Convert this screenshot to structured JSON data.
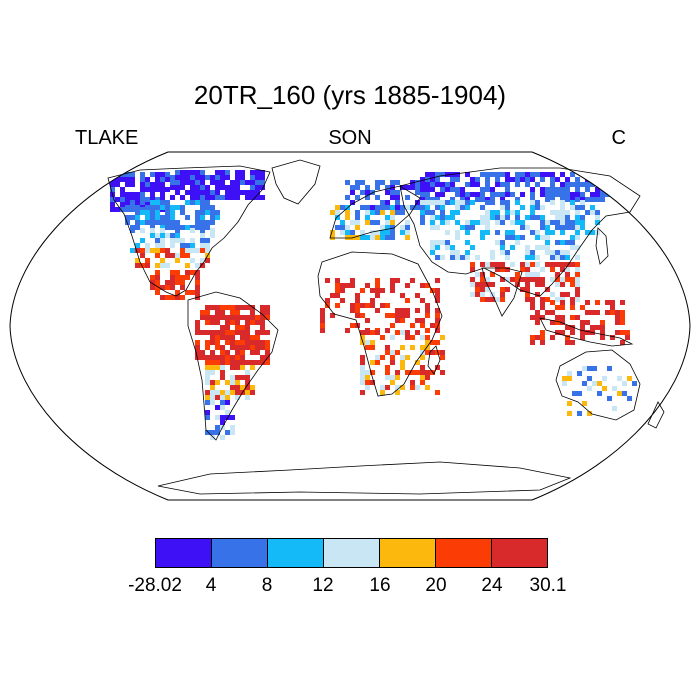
{
  "title": "20TR_160 (yrs 1885-1904)",
  "left_label": "TLAKE",
  "center_label": "SON",
  "right_label": "C",
  "colorbar": {
    "colors": [
      "#3d10f5",
      "#3872e8",
      "#13baf7",
      "#c9e6f5",
      "#fdb80e",
      "#fb3c04",
      "#d82a2a"
    ],
    "labels": [
      "-28.02",
      "4",
      "8",
      "12",
      "16",
      "20",
      "24",
      "30.1"
    ]
  }
}
